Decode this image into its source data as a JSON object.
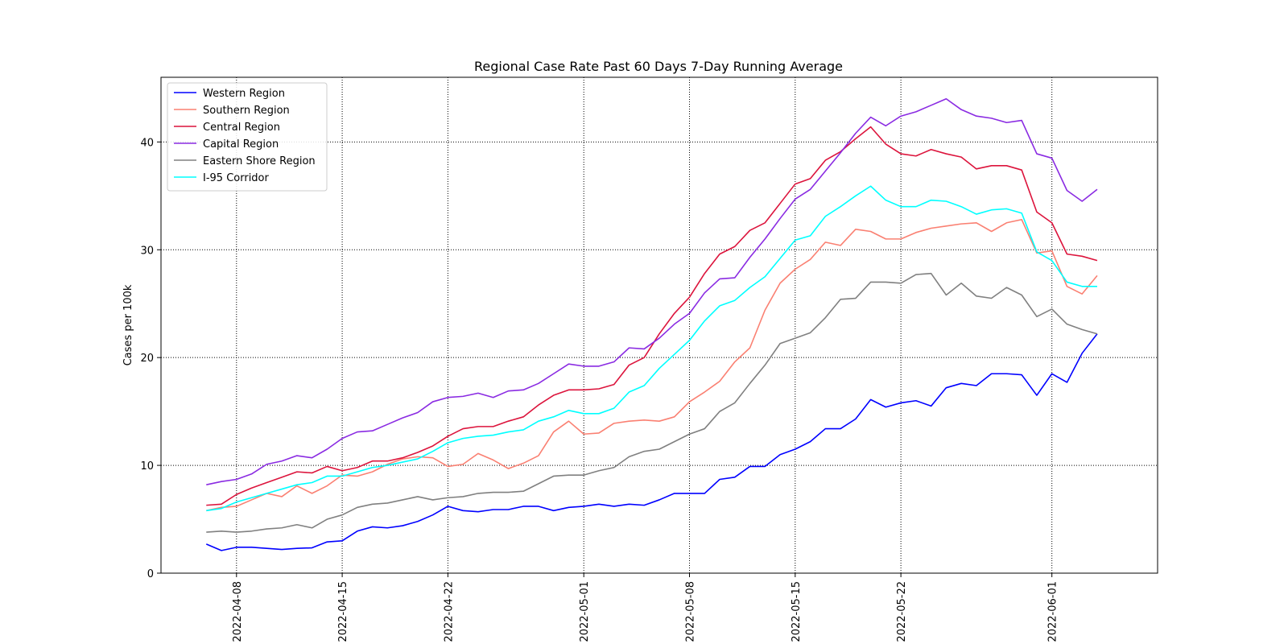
{
  "chart_data": {
    "type": "line",
    "title": "Regional Case Rate  Past 60 Days 7-Day Running Average",
    "xlabel": "",
    "ylabel": "Cases per 100k",
    "x_start": "2022-04-06",
    "x_step_days": 1,
    "xticks": [
      "2022-04-08",
      "2022-04-15",
      "2022-04-22",
      "2022-05-01",
      "2022-05-08",
      "2022-05-15",
      "2022-05-22",
      "2022-06-01"
    ],
    "xlim": [
      "2022-04-03",
      "2022-06-08"
    ],
    "yticks": [
      0,
      10,
      20,
      30,
      40
    ],
    "ylim": [
      0,
      46
    ],
    "grid": true,
    "legend_position": "top-left",
    "series": [
      {
        "name": "Western Region",
        "color": "#0000ff",
        "values": [
          2.7,
          2.1,
          2.4,
          2.4,
          2.3,
          2.2,
          2.3,
          2.35,
          2.9,
          3.0,
          3.9,
          4.3,
          4.2,
          4.4,
          4.8,
          5.4,
          6.2,
          5.8,
          5.7,
          5.9,
          5.9,
          6.2,
          6.2,
          5.8,
          6.1,
          6.2,
          6.4,
          6.2,
          6.4,
          6.3,
          6.8,
          7.4,
          7.4,
          7.4,
          8.7,
          8.9,
          9.9,
          9.9,
          11.0,
          11.5,
          12.2,
          13.4,
          13.4,
          14.3,
          16.1,
          15.4,
          15.8,
          16.0,
          15.5,
          17.2,
          17.6,
          17.4,
          18.5,
          18.5,
          18.4,
          16.5,
          18.5,
          17.7,
          20.4,
          22.2
        ]
      },
      {
        "name": "Southern Region",
        "color": "#fa8072",
        "values": [
          5.8,
          6.1,
          6.2,
          6.8,
          7.4,
          7.1,
          8.1,
          7.4,
          8.1,
          9.1,
          9.0,
          9.4,
          10.1,
          10.6,
          10.8,
          10.7,
          9.9,
          10.1,
          11.1,
          10.5,
          9.7,
          10.2,
          10.9,
          13.1,
          14.1,
          12.9,
          13.0,
          13.9,
          14.1,
          14.2,
          14.1,
          14.5,
          15.9,
          16.8,
          17.8,
          19.6,
          20.9,
          24.4,
          26.9,
          28.2,
          29.1,
          30.7,
          30.4,
          31.9,
          31.7,
          31.0,
          31.0,
          31.6,
          32.0,
          32.2,
          32.4,
          32.5,
          31.7,
          32.5,
          32.8,
          29.7,
          29.9,
          26.6,
          25.9,
          27.6
        ]
      },
      {
        "name": "Central Region",
        "color": "#dc143c",
        "values": [
          6.3,
          6.4,
          7.3,
          7.9,
          8.4,
          8.9,
          9.4,
          9.3,
          9.9,
          9.5,
          9.8,
          10.4,
          10.4,
          10.7,
          11.2,
          11.8,
          12.7,
          13.4,
          13.6,
          13.6,
          14.1,
          14.5,
          15.6,
          16.5,
          17.0,
          17.0,
          17.1,
          17.5,
          19.3,
          20.0,
          22.2,
          24.1,
          25.6,
          27.8,
          29.6,
          30.3,
          31.8,
          32.5,
          34.3,
          36.1,
          36.6,
          38.3,
          39.1,
          40.3,
          41.4,
          39.8,
          38.9,
          38.7,
          39.3,
          38.9,
          38.6,
          37.5,
          37.8,
          37.8,
          37.4,
          33.5,
          32.5,
          29.6,
          29.4,
          29.0
        ]
      },
      {
        "name": "Capital Region",
        "color": "#8a2be2",
        "values": [
          8.2,
          8.5,
          8.7,
          9.2,
          10.1,
          10.4,
          10.9,
          10.7,
          11.5,
          12.5,
          13.1,
          13.2,
          13.8,
          14.4,
          14.9,
          15.9,
          16.3,
          16.4,
          16.7,
          16.3,
          16.9,
          17.0,
          17.6,
          18.5,
          19.4,
          19.2,
          19.2,
          19.6,
          20.9,
          20.8,
          21.8,
          23.1,
          24.1,
          26.0,
          27.3,
          27.4,
          29.3,
          31.0,
          32.9,
          34.7,
          35.6,
          37.3,
          39.0,
          40.8,
          42.3,
          41.5,
          42.4,
          42.8,
          43.4,
          44.0,
          43.0,
          42.4,
          42.2,
          41.8,
          42.0,
          38.9,
          38.5,
          35.5,
          34.5,
          35.6
        ]
      },
      {
        "name": "Eastern Shore Region",
        "color": "#808080",
        "values": [
          3.8,
          3.9,
          3.8,
          3.9,
          4.1,
          4.2,
          4.5,
          4.2,
          5.0,
          5.4,
          6.1,
          6.4,
          6.5,
          6.8,
          7.1,
          6.8,
          7.0,
          7.1,
          7.4,
          7.5,
          7.5,
          7.6,
          8.3,
          9.0,
          9.1,
          9.1,
          9.5,
          9.8,
          10.8,
          11.3,
          11.5,
          12.2,
          12.9,
          13.4,
          15.0,
          15.8,
          17.6,
          19.3,
          21.3,
          21.8,
          22.3,
          23.7,
          25.4,
          25.5,
          27.0,
          27.0,
          26.9,
          27.7,
          27.8,
          25.8,
          26.9,
          25.7,
          25.5,
          26.5,
          25.8,
          23.8,
          24.5,
          23.1,
          22.6,
          22.2
        ]
      },
      {
        "name": "I-95 Corridor",
        "color": "#00ffff",
        "values": [
          5.8,
          6.0,
          6.6,
          7.0,
          7.4,
          7.8,
          8.2,
          8.4,
          9.0,
          9.0,
          9.4,
          9.8,
          10.0,
          10.3,
          10.6,
          11.3,
          12.1,
          12.5,
          12.7,
          12.8,
          13.1,
          13.3,
          14.1,
          14.5,
          15.1,
          14.8,
          14.8,
          15.3,
          16.8,
          17.4,
          19.0,
          20.3,
          21.6,
          23.4,
          24.8,
          25.3,
          26.5,
          27.5,
          29.2,
          30.9,
          31.3,
          33.1,
          34.0,
          35.0,
          35.9,
          34.6,
          34.0,
          34.0,
          34.6,
          34.5,
          34.0,
          33.3,
          33.7,
          33.8,
          33.4,
          29.8,
          29.0,
          27.0,
          26.6,
          26.6
        ]
      }
    ]
  }
}
